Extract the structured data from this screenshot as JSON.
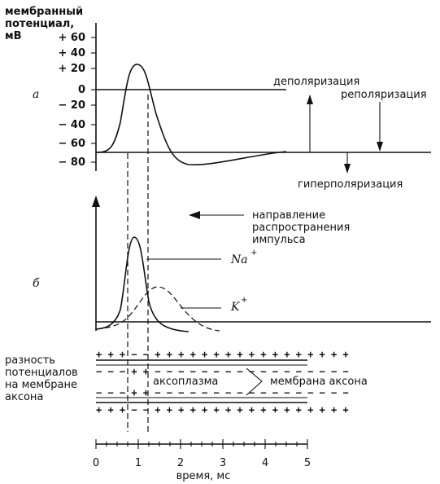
{
  "panel_a": {
    "y_axis_title_lines": [
      "мембранный",
      "потенциал,",
      "мВ"
    ],
    "y_ticks": [
      "+ 60",
      "+ 40",
      "+ 20",
      "0",
      "− 20",
      "− 40",
      "− 60",
      "− 80"
    ],
    "panel_letter": "а",
    "depolarization": "деполяризация",
    "repolarization": "реполяризация",
    "hyperpolarization": "гиперполяризация"
  },
  "panel_b": {
    "panel_letter": "б",
    "direction_lines": [
      "направление",
      "распространения",
      "импульса"
    ],
    "na_label": "Na",
    "na_sup": "+",
    "k_label": "K",
    "k_sup": "+"
  },
  "panel_c": {
    "diff_lines": [
      "разность",
      "потенциалов",
      "на мембране",
      "аксона"
    ],
    "axoplasm": "аксоплазма",
    "axon_membrane": "мембрана аксона"
  },
  "x_axis": {
    "ticks": [
      "0",
      "1",
      "2",
      "3",
      "4",
      "5"
    ],
    "label": "время, мс"
  }
}
